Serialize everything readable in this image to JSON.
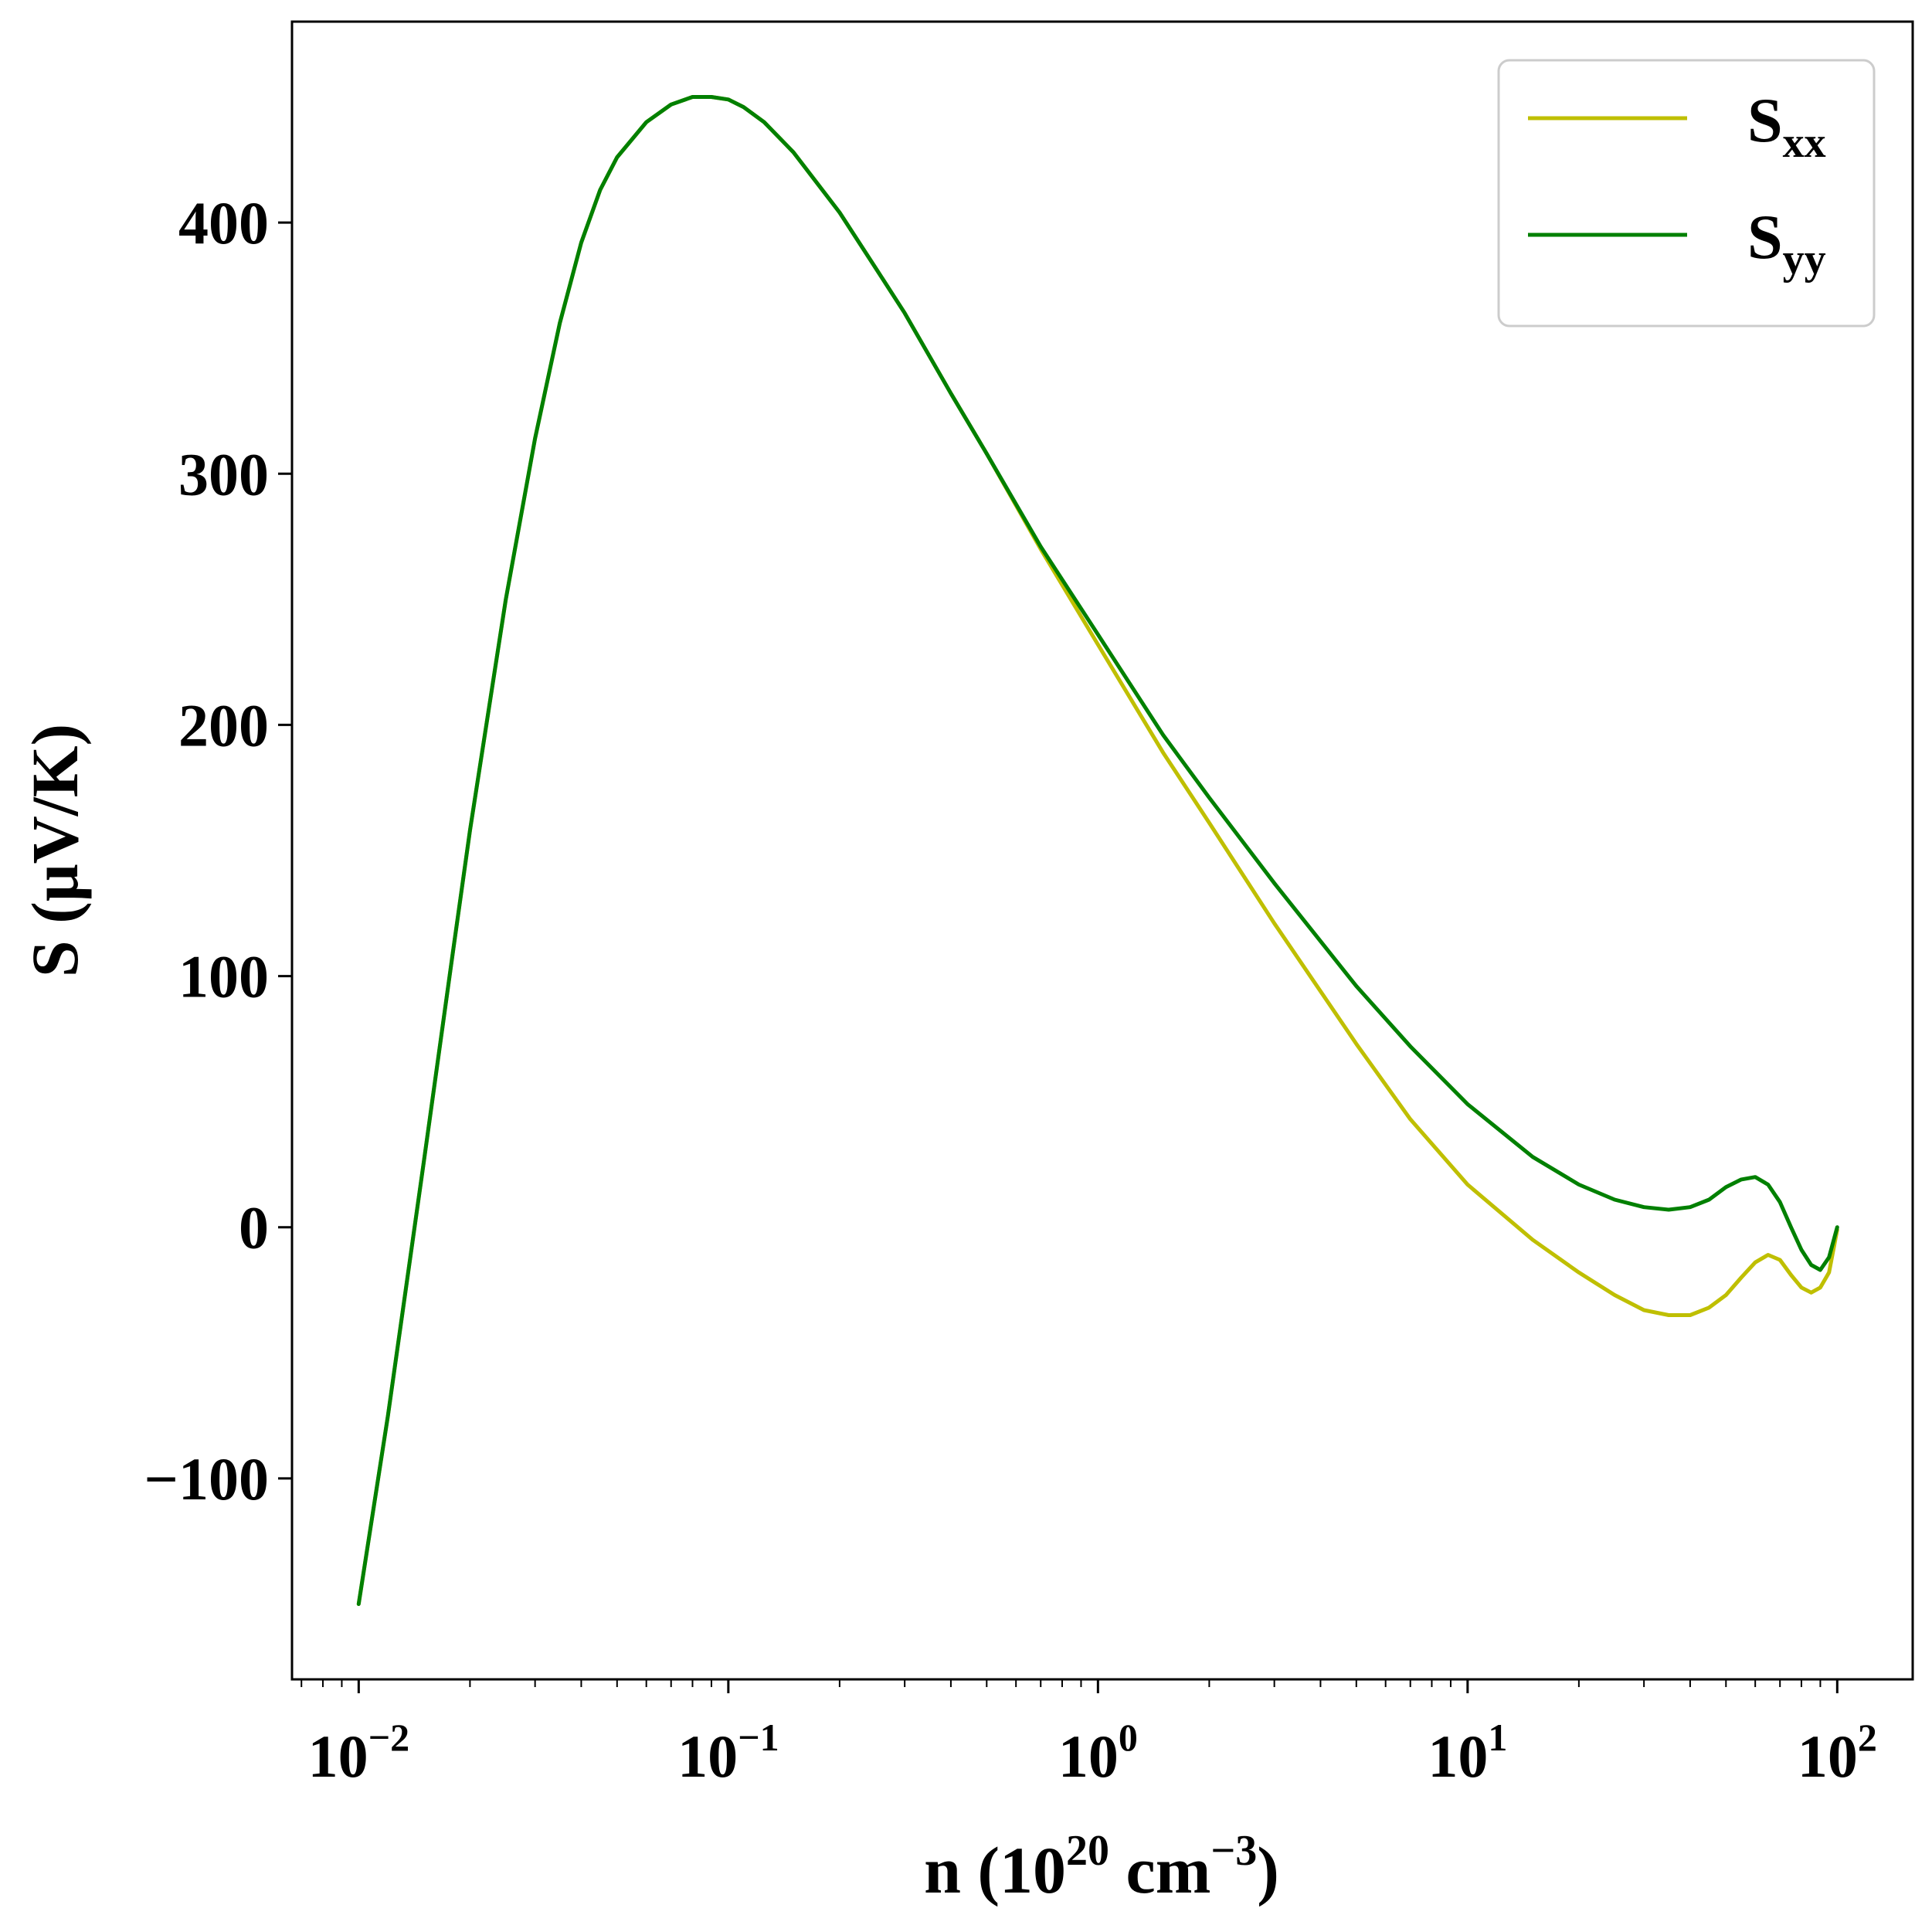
{
  "chart_data": {
    "type": "line",
    "xscale": "log",
    "xlim": [
      0.0066,
      160
    ],
    "ylim": [
      -180,
      480
    ],
    "xlabel": {
      "base": "n (10",
      "sup1": "20",
      "mid": " cm",
      "sup2": "−3",
      "end": ")"
    },
    "ylabel": "S (μV/K)",
    "xticks": [
      {
        "value": 0.01,
        "base": "10",
        "exp": "−2"
      },
      {
        "value": 0.1,
        "base": "10",
        "exp": "−1"
      },
      {
        "value": 1,
        "base": "10",
        "exp": "0"
      },
      {
        "value": 10,
        "base": "10",
        "exp": "1"
      },
      {
        "value": 100,
        "base": "10",
        "exp": "2"
      }
    ],
    "yticks": [
      {
        "value": -100,
        "label": "−100"
      },
      {
        "value": 0,
        "label": "0"
      },
      {
        "value": 100,
        "label": "100"
      },
      {
        "value": 200,
        "label": "200"
      },
      {
        "value": 300,
        "label": "300"
      },
      {
        "value": 400,
        "label": "400"
      }
    ],
    "grid": false,
    "legend_position": "top-right",
    "series": [
      {
        "name": "S",
        "sub": "xx",
        "color": "#bfbf00",
        "x": [
          0.01,
          0.012,
          0.015,
          0.018,
          0.02,
          0.025,
          0.03,
          0.035,
          0.04,
          0.045,
          0.05,
          0.06,
          0.07,
          0.08,
          0.09,
          0.1,
          0.11,
          0.125,
          0.15,
          0.2,
          0.25,
          0.3,
          0.4,
          0.5,
          0.7,
          1.0,
          1.5,
          2.0,
          3.0,
          5.0,
          7.0,
          10.0,
          15.0,
          20.0,
          25.0,
          30.0,
          35.0,
          40.0,
          45.0,
          50.0,
          55.0,
          60.0,
          65.0,
          70.0,
          75.0,
          80.0,
          85.0,
          90.0,
          95.0,
          100.0
        ],
        "y": [
          -150,
          -75,
          26,
          110,
          158,
          250,
          314,
          360,
          392,
          413,
          426,
          440,
          447,
          450,
          450,
          449,
          446,
          440,
          428,
          404,
          382,
          364,
          332,
          308,
          270,
          232,
          189,
          161,
          121,
          73,
          43,
          17,
          -5,
          -18,
          -27,
          -33,
          -35,
          -35,
          -32,
          -27,
          -20,
          -14,
          -11,
          -13,
          -19,
          -24,
          -26,
          -24,
          -18,
          -1
        ]
      },
      {
        "name": "S",
        "sub": "yy",
        "color": "#008000",
        "x": [
          0.01,
          0.012,
          0.015,
          0.018,
          0.02,
          0.025,
          0.03,
          0.035,
          0.04,
          0.045,
          0.05,
          0.06,
          0.07,
          0.08,
          0.09,
          0.1,
          0.11,
          0.125,
          0.15,
          0.2,
          0.25,
          0.3,
          0.4,
          0.5,
          0.7,
          1.0,
          1.5,
          2.0,
          3.0,
          5.0,
          7.0,
          10.0,
          15.0,
          20.0,
          25.0,
          30.0,
          35.0,
          40.0,
          45.0,
          50.0,
          55.0,
          60.0,
          65.0,
          70.0,
          75.0,
          80.0,
          85.0,
          90.0,
          95.0,
          100.0
        ],
        "y": [
          -150,
          -75,
          26,
          110,
          158,
          250,
          314,
          360,
          392,
          413,
          426,
          440,
          447,
          450,
          450,
          449,
          446,
          440,
          428,
          404,
          382,
          364,
          332,
          308,
          271,
          236,
          196,
          171,
          137,
          96,
          72,
          49,
          28,
          17,
          11,
          8,
          7,
          8,
          11,
          16,
          19,
          20,
          17,
          10,
          0,
          -9,
          -15,
          -17,
          -12,
          0
        ]
      }
    ]
  }
}
